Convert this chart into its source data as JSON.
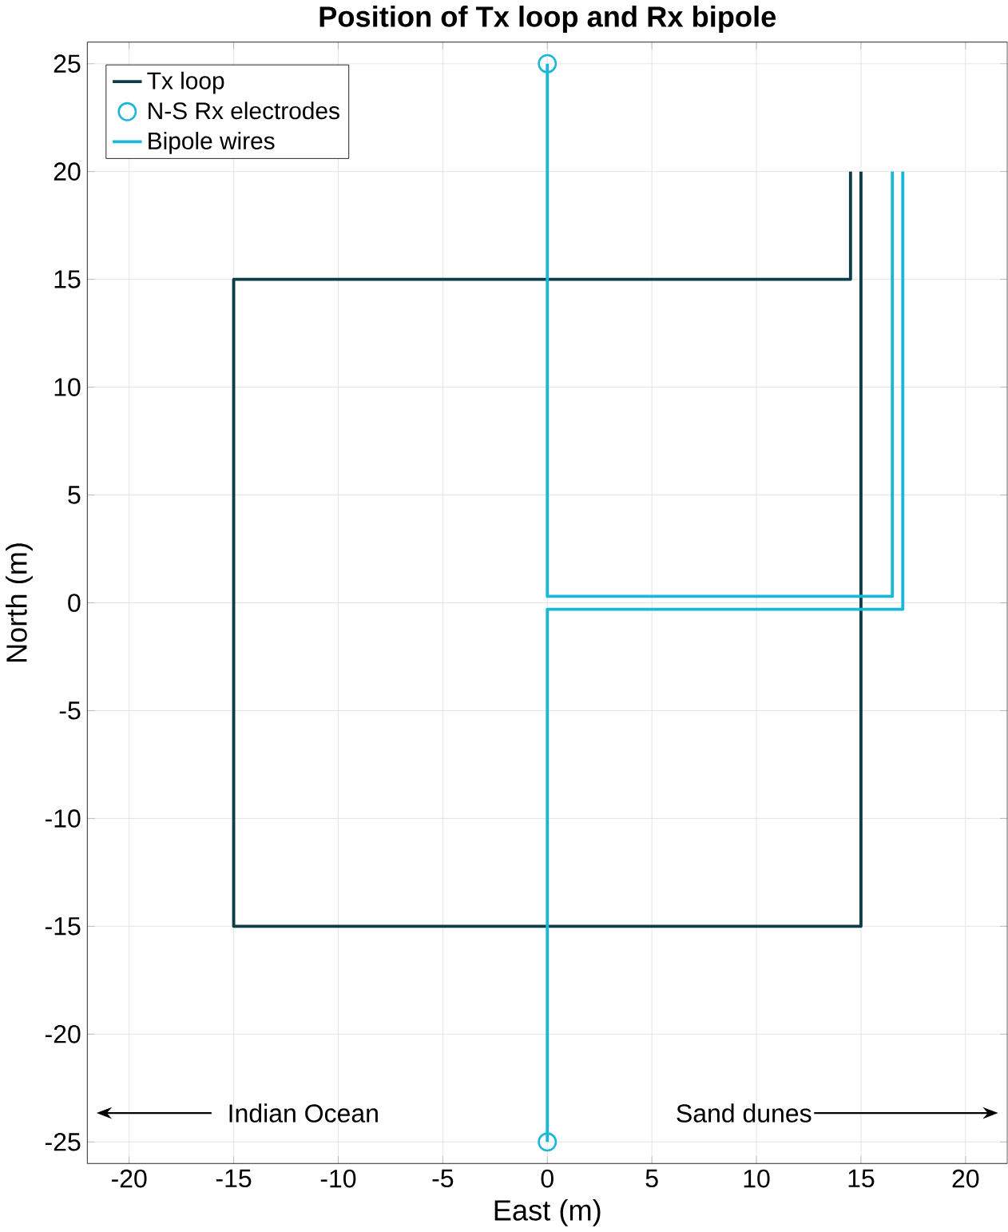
{
  "chart_data": {
    "type": "line",
    "title": "Position of Tx loop and Rx bipole",
    "xlabel": "East (m)",
    "ylabel": "North (m)",
    "xlim": [
      -22,
      22
    ],
    "ylim": [
      -26,
      26
    ],
    "xticks": [
      -20,
      -15,
      -10,
      -5,
      0,
      5,
      10,
      15,
      20
    ],
    "yticks": [
      -25,
      -20,
      -15,
      -10,
      -5,
      0,
      5,
      10,
      15,
      20,
      25
    ],
    "grid": true,
    "legend": "top left",
    "marker": "none",
    "series": [
      {
        "name": "Tx loop",
        "color": "#0d3d47",
        "x": [
          14.5,
          14.5,
          -15,
          -15,
          15,
          15
        ],
        "values": [
          20,
          15,
          15,
          -15,
          -15,
          20
        ]
      },
      {
        "name": "N-S Rx electrodes",
        "type": "scatter",
        "marker": "circle",
        "color": "#1ab8d8",
        "x": [
          0,
          0
        ],
        "values": [
          25,
          -25
        ]
      },
      {
        "name": "Bipole wires",
        "color": "#1ab8d8",
        "x": [
          0,
          0,
          16.5,
          16.5,
          null,
          0,
          0,
          17,
          17
        ],
        "values": [
          25,
          0.3,
          0.3,
          20,
          null,
          -25,
          -0.3,
          -0.3,
          20
        ]
      }
    ],
    "annotations": [
      "Indian Ocean",
      "Sand dunes"
    ]
  }
}
